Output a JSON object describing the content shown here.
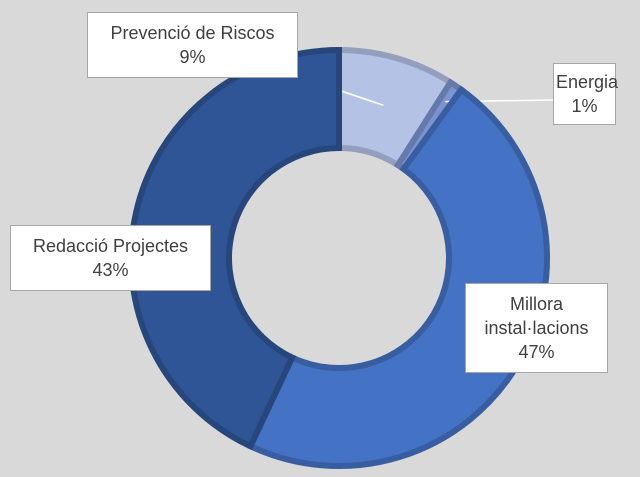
{
  "chart_data": {
    "type": "pie",
    "categories": [
      "Prevenció de Riscos",
      "Energia",
      "Millora instal·lacions",
      "Redacció Projectes"
    ],
    "values": [
      9,
      1,
      47,
      43
    ],
    "value_labels": [
      "9%",
      "1%",
      "47%",
      "43%"
    ],
    "colors": [
      "#b4c2e6",
      "#7b93d1",
      "#4472c4",
      "#2f5597"
    ]
  }
}
